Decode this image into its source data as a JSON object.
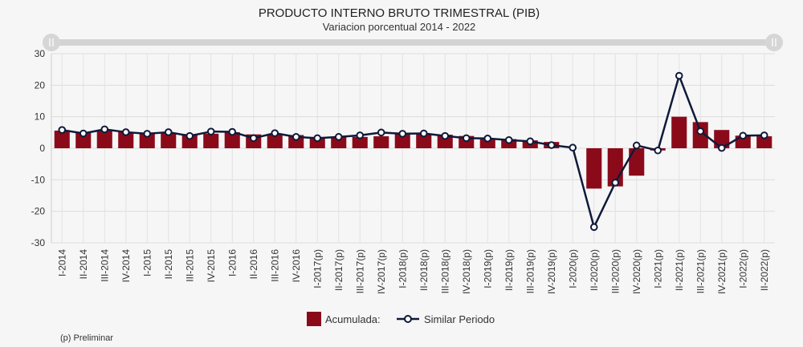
{
  "chart_data": {
    "type": "bar",
    "title": "PRODUCTO INTERNO BRUTO TRIMESTRAL (PIB)",
    "subtitle": "Variacion porcentual 2014 - 2022",
    "footnote": "(p) Preliminar",
    "categories": [
      "I-2014",
      "II-2014",
      "III-2014",
      "IV-2014",
      "I-2015",
      "II-2015",
      "III-2015",
      "IV-2015",
      "I-2016",
      "II-2016",
      "III-2016",
      "IV-2016",
      "I-2017(p)",
      "II-2017(p)",
      "III-2017(p)",
      "IV-2017(p)",
      "I-2018(p)",
      "II-2018(p)",
      "III-2018(p)",
      "IV-2018(p)",
      "I-2019(p)",
      "II-2019(p)",
      "III-2019(p)",
      "IV-2019(p)",
      "I-2020(p)",
      "II-2020(p)",
      "III-2020(p)",
      "IV-2020(p)",
      "I-2021(p)",
      "II-2021(p)",
      "III-2021(p)",
      "IV-2021(p)",
      "I-2022(p)",
      "II-2022(p)"
    ],
    "series": [
      {
        "name": "Acumulada:",
        "type": "bar",
        "color": "#8b0a1a",
        "values": [
          5.6,
          5.2,
          5.6,
          5.1,
          4.6,
          4.8,
          4.5,
          4.6,
          5.1,
          4.4,
          4.4,
          4.2,
          3.3,
          3.6,
          3.6,
          3.8,
          4.6,
          4.7,
          4.3,
          3.9,
          3.1,
          2.9,
          2.5,
          2.0,
          0.0,
          -12.8,
          -12.1,
          -8.7,
          -0.7,
          10.0,
          8.3,
          5.8,
          4.0,
          3.8
        ]
      },
      {
        "name": "Similar Periodo",
        "type": "line",
        "color": "#0f1a3a",
        "values": [
          5.8,
          4.7,
          6.0,
          5.1,
          4.6,
          5.1,
          3.9,
          5.3,
          5.2,
          3.2,
          4.8,
          3.6,
          3.2,
          3.6,
          4.1,
          5.0,
          4.6,
          4.7,
          3.9,
          3.2,
          3.1,
          2.6,
          2.2,
          1.0,
          0.2,
          -25.0,
          -10.9,
          0.9,
          -0.7,
          23.0,
          5.4,
          0.1,
          4.0,
          4.1
        ]
      }
    ],
    "ylim": [
      -30,
      30
    ],
    "yticks": [
      30,
      20,
      10,
      0,
      -10,
      -20,
      -30
    ],
    "grid": true,
    "legend": "bottom-center"
  }
}
